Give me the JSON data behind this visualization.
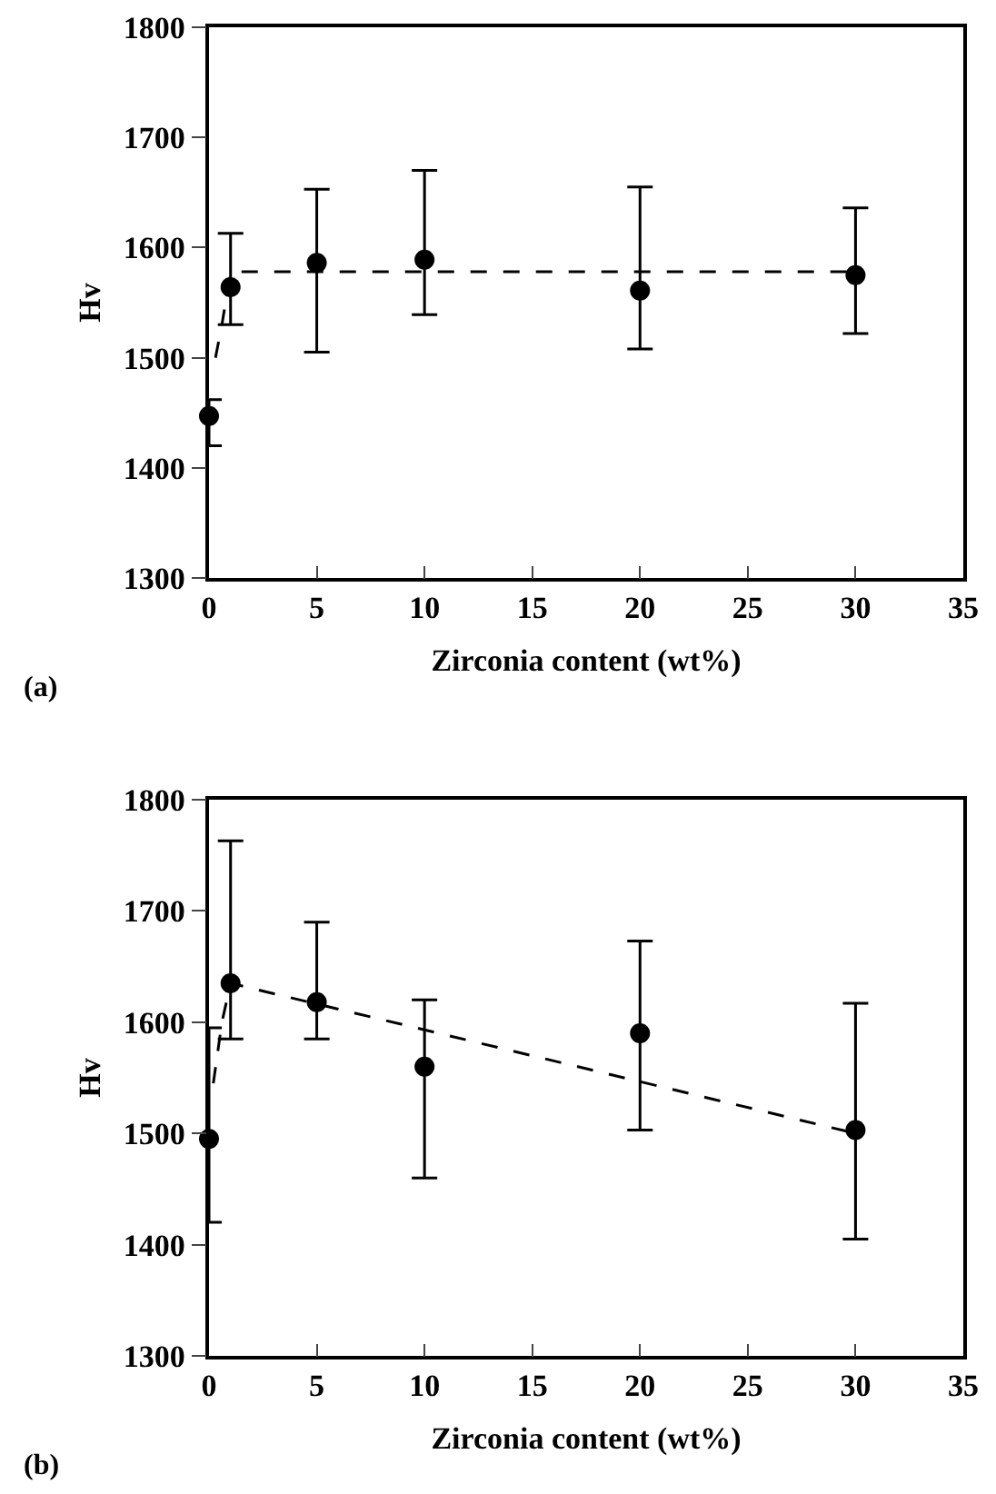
{
  "chart_data": [
    {
      "type": "scatter",
      "xlabel": "Zirconia content (wt%)",
      "ylabel": "Hv",
      "annotations": [
        "(a)"
      ],
      "xlim": [
        0,
        35
      ],
      "xticks": [
        0,
        5,
        10,
        15,
        20,
        25,
        30,
        35
      ],
      "ylim": [
        1300,
        1800
      ],
      "yticks": [
        1300,
        1400,
        1500,
        1600,
        1700,
        1800
      ],
      "series": [
        {
          "color": "#000000",
          "marker": "circle",
          "x": [
            0,
            1,
            5,
            10,
            20,
            30
          ],
          "values": [
            1447,
            1564,
            1586,
            1589,
            1561,
            1575
          ],
          "errors": [
            [
              1420,
              1462
            ],
            [
              1530,
              1613
            ],
            [
              1505,
              1653
            ],
            [
              1539,
              1670
            ],
            [
              1508,
              1655
            ],
            [
              1522,
              1636
            ]
          ]
        },
        {
          "type": "line",
          "color": "#000000",
          "marker": "none",
          "line_style": "dashed",
          "x": [
            0.3,
            0.6,
            1,
            30
          ],
          "values": [
            1500,
            1530,
            1578,
            1578
          ]
        }
      ]
    },
    {
      "type": "scatter",
      "xlabel": "Zirconia content (wt%)",
      "ylabel": "Hv",
      "annotations": [
        "(b)"
      ],
      "xlim": [
        0,
        35
      ],
      "xticks": [
        0,
        5,
        10,
        15,
        20,
        25,
        30,
        35
      ],
      "ylim": [
        1300,
        1800
      ],
      "yticks": [
        1300,
        1400,
        1500,
        1600,
        1700,
        1800
      ],
      "series": [
        {
          "color": "#000000",
          "marker": "circle",
          "x": [
            0,
            1,
            5,
            10,
            20,
            30
          ],
          "values": [
            1495,
            1635,
            1618,
            1560,
            1590,
            1503
          ],
          "errors": [
            [
              1420,
              1595
            ],
            [
              1585,
              1763
            ],
            [
              1585,
              1690
            ],
            [
              1460,
              1620
            ],
            [
              1503,
              1673
            ],
            [
              1405,
              1617
            ]
          ]
        },
        {
          "type": "line",
          "color": "#000000",
          "marker": "none",
          "line_style": "dashed",
          "x": [
            0.2,
            0.6,
            1,
            30
          ],
          "values": [
            1545,
            1600,
            1635,
            1500
          ]
        }
      ]
    }
  ]
}
